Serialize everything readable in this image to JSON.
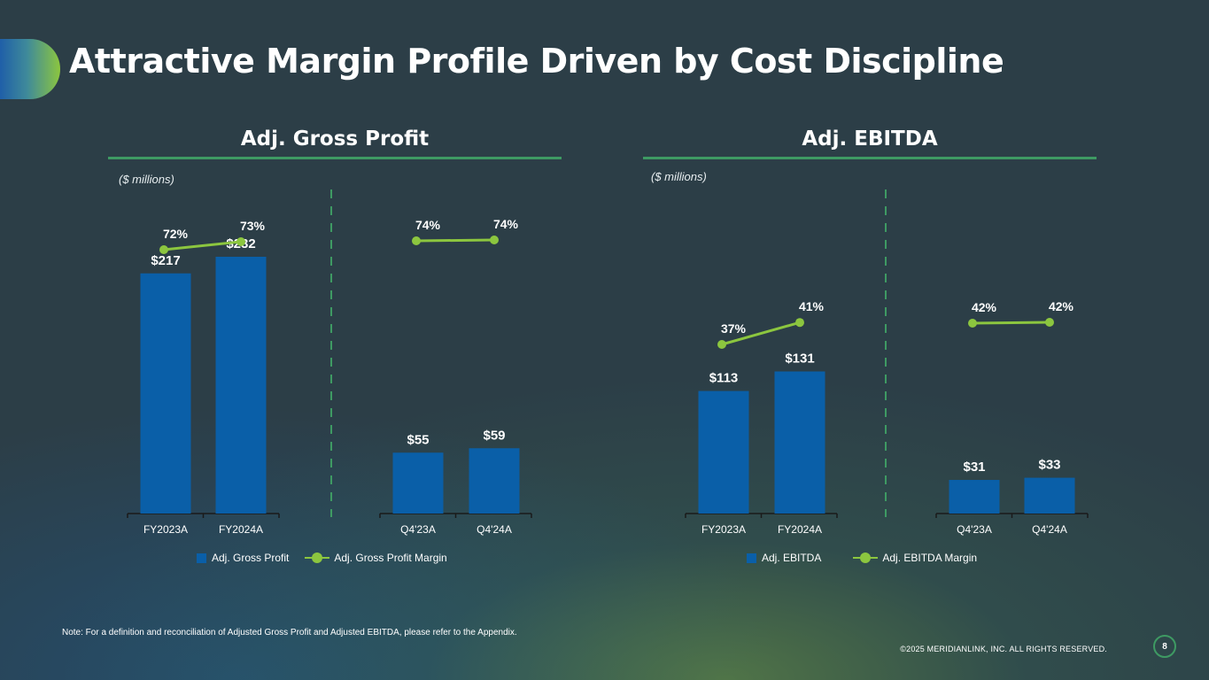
{
  "title": "Attractive Margin Profile Driven by Cost Discipline",
  "colors": {
    "bar": "#0a5fa8",
    "line": "#8cc63f",
    "rule": "#3e9a63",
    "divider": "#3e9a63"
  },
  "chart_data": [
    {
      "type": "bar",
      "title": "Adj. Gross Profit",
      "units": "($ millions)",
      "legend": {
        "bar": "Adj. Gross Profit",
        "line": "Adj. Gross Profit Margin"
      },
      "groups": [
        {
          "categories": [
            "FY2023A",
            "FY2024A"
          ],
          "values": [
            217,
            232
          ],
          "value_labels": [
            "$217",
            "$232"
          ],
          "margins": [
            72,
            73
          ],
          "margin_labels": [
            "72%",
            "73%"
          ]
        },
        {
          "categories": [
            "Q4'23A",
            "Q4'24A"
          ],
          "values": [
            55,
            59
          ],
          "value_labels": [
            "$55",
            "$59"
          ],
          "margins": [
            74,
            74
          ],
          "margin_labels": [
            "74%",
            "74%"
          ]
        }
      ]
    },
    {
      "type": "bar",
      "title": "Adj. EBITDA",
      "units": "($ millions)",
      "legend": {
        "bar": "Adj. EBITDA",
        "line": "Adj. EBITDA Margin"
      },
      "groups": [
        {
          "categories": [
            "FY2023A",
            "FY2024A"
          ],
          "values": [
            113,
            131
          ],
          "value_labels": [
            "$113",
            "$131"
          ],
          "margins": [
            37,
            41
          ],
          "margin_labels": [
            "37%",
            "41%"
          ]
        },
        {
          "categories": [
            "Q4'23A",
            "Q4'24A"
          ],
          "values": [
            31,
            33
          ],
          "value_labels": [
            "$31",
            "$33"
          ],
          "margins": [
            42,
            42
          ],
          "margin_labels": [
            "42%",
            "42%"
          ]
        }
      ]
    }
  ],
  "footnote": "Note: For a definition and reconciliation of Adjusted Gross Profit and Adjusted EBITDA, please refer to the Appendix.",
  "copyright": "©2025 MERIDIANLINK, INC. ALL RIGHTS RESERVED.",
  "page_number": "8"
}
